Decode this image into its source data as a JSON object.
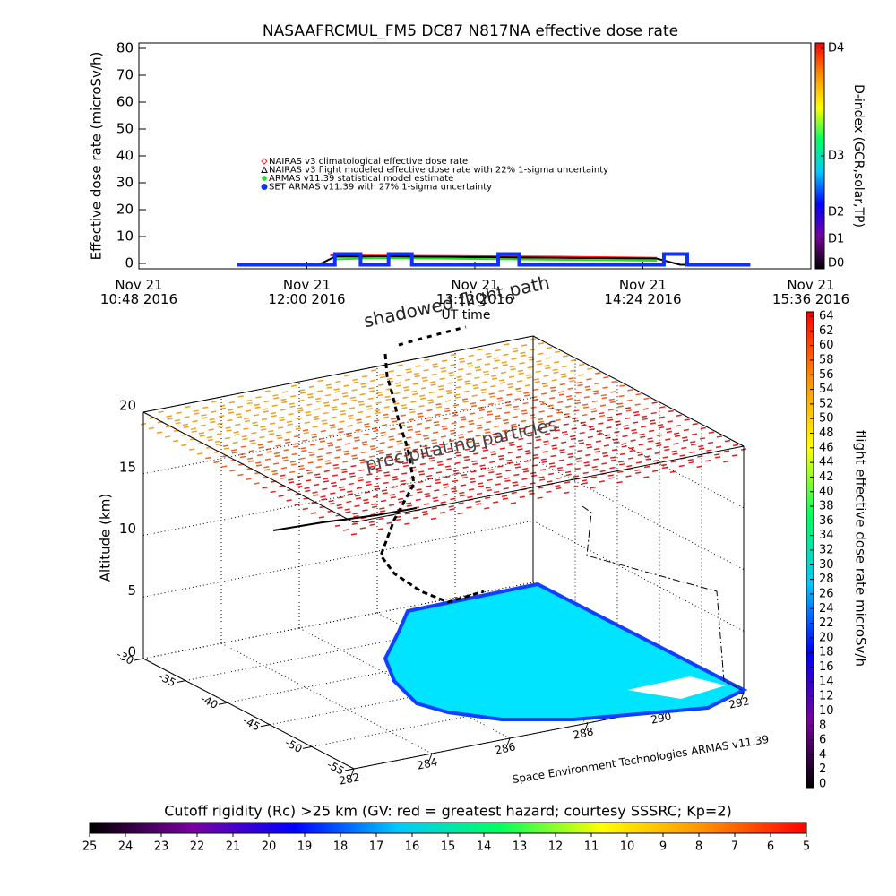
{
  "chart_data": [
    {
      "type": "line",
      "title": "NASAAFRCMUL_FM5 DC87 N817NA effective dose rate",
      "ylabel": "Effective dose rate (microSv/h)",
      "xlabel": "UT time",
      "xlim": [
        "2016-11-21T10:48",
        "2016-11-21T15:36"
      ],
      "xticks": [
        {
          "value": "2016-11-21T10:48",
          "label": "Nov 21\n10:48 2016"
        },
        {
          "value": "2016-11-21T12:00",
          "label": "Nov 21\n12:00 2016"
        },
        {
          "value": "2016-11-21T13:12",
          "label": "Nov 21\n13:12 2016"
        },
        {
          "value": "2016-11-21T14:24",
          "label": "Nov 21\n14:24 2016"
        },
        {
          "value": "2016-11-21T15:36",
          "label": "Nov 21\n15:36 2016"
        }
      ],
      "ylim": [
        -2,
        82
      ],
      "yticks": [
        0,
        10,
        20,
        30,
        40,
        50,
        60,
        70,
        80
      ],
      "series": [
        {
          "name": "NAIRAS v3 climatological effective dose rate",
          "color": "#ff2020",
          "marker": "diamond",
          "x": [
            "2016-11-21T12:10",
            "2016-11-21T12:30",
            "2016-11-21T12:50",
            "2016-11-21T13:10",
            "2016-11-21T13:30",
            "2016-11-21T13:50",
            "2016-11-21T14:10",
            "2016-11-21T14:30"
          ],
          "values": [
            3.0,
            2.9,
            2.8,
            2.7,
            2.6,
            2.5,
            2.3,
            2.1
          ]
        },
        {
          "name": "NAIRAS v3 flight modeled effective dose rate with 22% 1-sigma uncertainty",
          "color": "#000000",
          "marker": "triangle",
          "x": [
            "2016-11-21T11:30",
            "2016-11-21T12:05",
            "2016-11-21T12:12",
            "2016-11-21T12:30",
            "2016-11-21T13:00",
            "2016-11-21T13:30",
            "2016-11-21T14:00",
            "2016-11-21T14:30",
            "2016-11-21T14:40",
            "2016-11-21T15:10"
          ],
          "values": [
            -0.5,
            -0.5,
            2.5,
            2.6,
            2.4,
            2.2,
            2.0,
            1.8,
            -0.5,
            -0.5
          ]
        },
        {
          "name": "ARMAS v11.39 statistical model estimate",
          "color": "#20e020",
          "marker": "star",
          "x": [
            "2016-11-21T12:12",
            "2016-11-21T12:30",
            "2016-11-21T13:00",
            "2016-11-21T13:30",
            "2016-11-21T14:00",
            "2016-11-21T14:30"
          ],
          "values": [
            1.5,
            2.0,
            1.8,
            1.5,
            1.3,
            1.0
          ]
        },
        {
          "name": "SET ARMAS v11.39 with 27% 1-sigma uncertainty",
          "color": "#1030ff",
          "marker": "circle",
          "x": [
            "2016-11-21T11:30",
            "2016-11-21T12:12",
            "2016-11-21T12:12",
            "2016-11-21T12:23",
            "2016-11-21T12:23",
            "2016-11-21T12:35",
            "2016-11-21T12:35",
            "2016-11-21T12:45",
            "2016-11-21T12:45",
            "2016-11-21T13:22",
            "2016-11-21T13:22",
            "2016-11-21T13:31",
            "2016-11-21T13:31",
            "2016-11-21T14:33",
            "2016-11-21T14:33",
            "2016-11-21T14:43",
            "2016-11-21T14:43",
            "2016-11-21T15:10"
          ],
          "values": [
            -0.5,
            -0.5,
            3.5,
            3.5,
            -0.5,
            -0.5,
            3.5,
            3.5,
            -0.5,
            -0.5,
            3.5,
            3.5,
            -0.5,
            -0.5,
            3.5,
            3.5,
            -0.5,
            -0.5
          ]
        }
      ],
      "colorbar": {
        "label": "D-index (GCR,solar,TP)",
        "ticks": [
          {
            "value": 0,
            "label": "D0"
          },
          {
            "value": 9,
            "label": "D1"
          },
          {
            "value": 19,
            "label": "D2"
          },
          {
            "value": 40,
            "label": "D3"
          },
          {
            "value": 80,
            "label": "D4"
          }
        ],
        "colors": [
          "#000000",
          "#7a00a0",
          "#0000ff",
          "#00c8ff",
          "#00ff60",
          "#ffff00",
          "#ff9000",
          "#ff0000"
        ]
      }
    },
    {
      "type": "surface3d",
      "zlabel": "Altitude (km)",
      "xlim": [
        282,
        292
      ],
      "xticks": [
        282,
        284,
        286,
        288,
        290,
        292
      ],
      "ylim": [
        -30,
        -55
      ],
      "yticks": [
        -30,
        -35,
        -40,
        -45,
        -50,
        -55
      ],
      "zlim": [
        0,
        20
      ],
      "zticks": [
        0,
        5,
        10,
        15,
        20
      ],
      "annotations": [
        "shadowed flight path",
        "precipitating particles",
        "Space Environment Technologies ARMAS v11.39"
      ]
    },
    {
      "type": "colorbar",
      "orientation": "vertical",
      "label": "flight effective dose rate microSv/h",
      "lim": [
        0,
        64
      ],
      "ticks": [
        0,
        2,
        4,
        6,
        8,
        10,
        12,
        14,
        16,
        18,
        20,
        22,
        24,
        26,
        28,
        30,
        32,
        34,
        36,
        38,
        40,
        42,
        44,
        46,
        48,
        50,
        52,
        54,
        56,
        58,
        60,
        62,
        64
      ],
      "colors": [
        "#000000",
        "#7a00a0",
        "#0000ff",
        "#00c8ff",
        "#00ff60",
        "#ffff00",
        "#ff9000",
        "#ff0000"
      ]
    },
    {
      "type": "colorbar",
      "orientation": "horizontal",
      "label": "Cutoff rigidity (Rc) >25 km (GV: red = greatest hazard; courtesy SSSRC; Kp=2)",
      "lim": [
        25,
        5
      ],
      "ticks": [
        25,
        24,
        23,
        22,
        21,
        20,
        19,
        18,
        17,
        16,
        15,
        14,
        13,
        12,
        11,
        10,
        9,
        8,
        7,
        6,
        5
      ],
      "colors": [
        "#000000",
        "#7a00a0",
        "#0000ff",
        "#00c8ff",
        "#00ff60",
        "#ffff00",
        "#ff9000",
        "#ff0000"
      ]
    }
  ]
}
